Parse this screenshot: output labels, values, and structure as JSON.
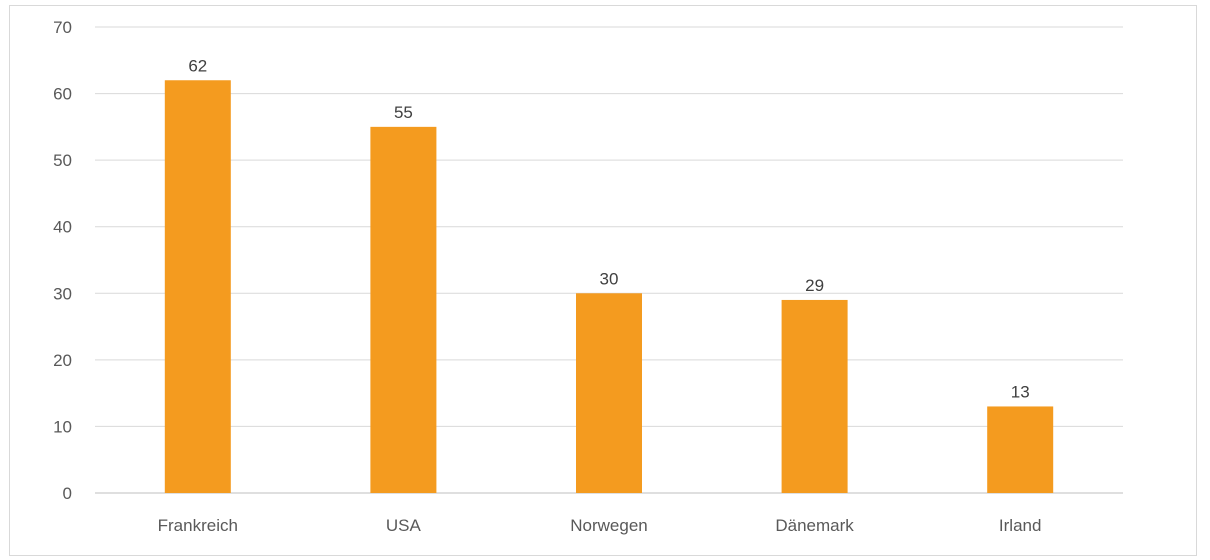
{
  "chart_data": {
    "type": "bar",
    "title": "",
    "xlabel": "",
    "ylabel": "",
    "categories": [
      "Frankreich",
      "USA",
      "Norwegen",
      "Dänemark",
      "Irland"
    ],
    "values": [
      62,
      55,
      30,
      29,
      13
    ],
    "ylim": [
      0,
      70
    ],
    "yticks": [
      0,
      10,
      20,
      30,
      40,
      50,
      60,
      70
    ],
    "grid": true,
    "legend": "none",
    "bar_color": "#f49b1f",
    "gridline_color": "#d9d9d9",
    "axis_line_color": "#bfbfbf"
  }
}
